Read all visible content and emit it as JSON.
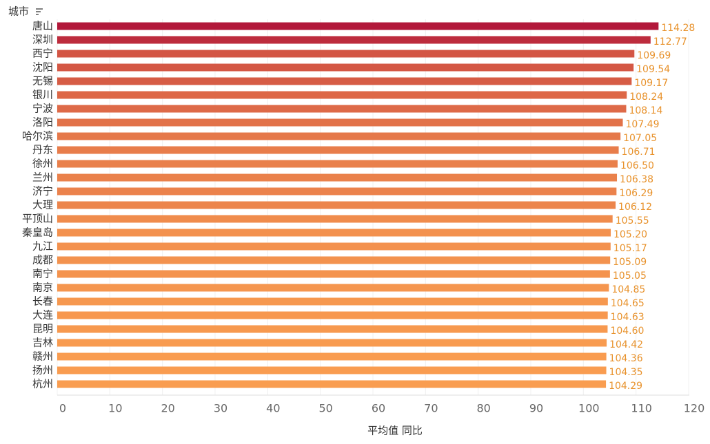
{
  "chart_data": {
    "type": "hbar",
    "y_label": "城市",
    "x_label": "平均值 同比",
    "categories": [
      "唐山",
      "深圳",
      "西宁",
      "沈阳",
      "无锡",
      "银川",
      "宁波",
      "洛阳",
      "哈尔滨",
      "丹东",
      "徐州",
      "兰州",
      "济宁",
      "大理",
      "平顶山",
      "秦皇岛",
      "九江",
      "成都",
      "南宁",
      "南京",
      "长春",
      "大连",
      "昆明",
      "吉林",
      "赣州",
      "扬州",
      "杭州"
    ],
    "values": [
      114.28,
      112.77,
      109.69,
      109.54,
      109.17,
      108.24,
      108.14,
      107.49,
      107.05,
      106.71,
      106.5,
      106.38,
      106.29,
      106.12,
      105.55,
      105.2,
      105.17,
      105.09,
      105.05,
      104.85,
      104.65,
      104.63,
      104.6,
      104.42,
      104.36,
      104.35,
      104.29
    ],
    "value_labels": [
      "114.28",
      "112.77",
      "109.69",
      "109.54",
      "109.17",
      "108.24",
      "108.14",
      "107.49",
      "107.05",
      "106.71",
      "106.50",
      "106.38",
      "106.29",
      "106.12",
      "105.55",
      "105.20",
      "105.17",
      "105.09",
      "105.05",
      "104.85",
      "104.65",
      "104.63",
      "104.60",
      "104.42",
      "104.36",
      "104.35",
      "104.29"
    ],
    "color_low": "#f99d50",
    "color_high": "#b2183a",
    "label_color": "#e8922c",
    "xlim": [
      0,
      120
    ],
    "xticks": [
      0,
      10,
      20,
      30,
      40,
      50,
      60,
      70,
      80,
      90,
      100,
      110,
      120
    ],
    "grid": true
  }
}
